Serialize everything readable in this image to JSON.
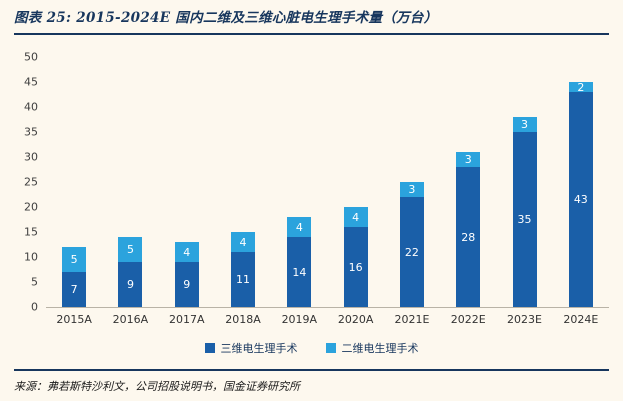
{
  "header": {
    "title": "图表 25: 2015-2024E 国内二维及三维心脏电生理手术量（万台）"
  },
  "footer": {
    "source": "来源：弗若斯特沙利文，公司招股说明书，国金证券研究所"
  },
  "colors": {
    "accent_navy": "#17365d",
    "background": "#fdf8ee",
    "bar_3d": "#1a5fa8",
    "bar_2d": "#2ba3dd",
    "axis_line": "#b9b3a6"
  },
  "chart_data": {
    "type": "bar",
    "stacked": true,
    "title": "2015-2024E 国内二维及三维心脏电生理手术量（万台）",
    "categories": [
      "2015A",
      "2016A",
      "2017A",
      "2018A",
      "2019A",
      "2020A",
      "2021E",
      "2022E",
      "2023E",
      "2024E"
    ],
    "series": [
      {
        "name": "三维电生理手术",
        "color": "#1a5fa8",
        "values": [
          7,
          9,
          9,
          11,
          14,
          16,
          22,
          28,
          35,
          43
        ]
      },
      {
        "name": "二维电生理手术",
        "color": "#2ba3dd",
        "values": [
          5,
          5,
          4,
          4,
          4,
          4,
          3,
          3,
          3,
          2
        ]
      }
    ],
    "ylim": [
      0,
      50
    ],
    "ytick_step": 5,
    "grid": false,
    "legend_position": "bottom",
    "value_labels": "inside-white"
  }
}
